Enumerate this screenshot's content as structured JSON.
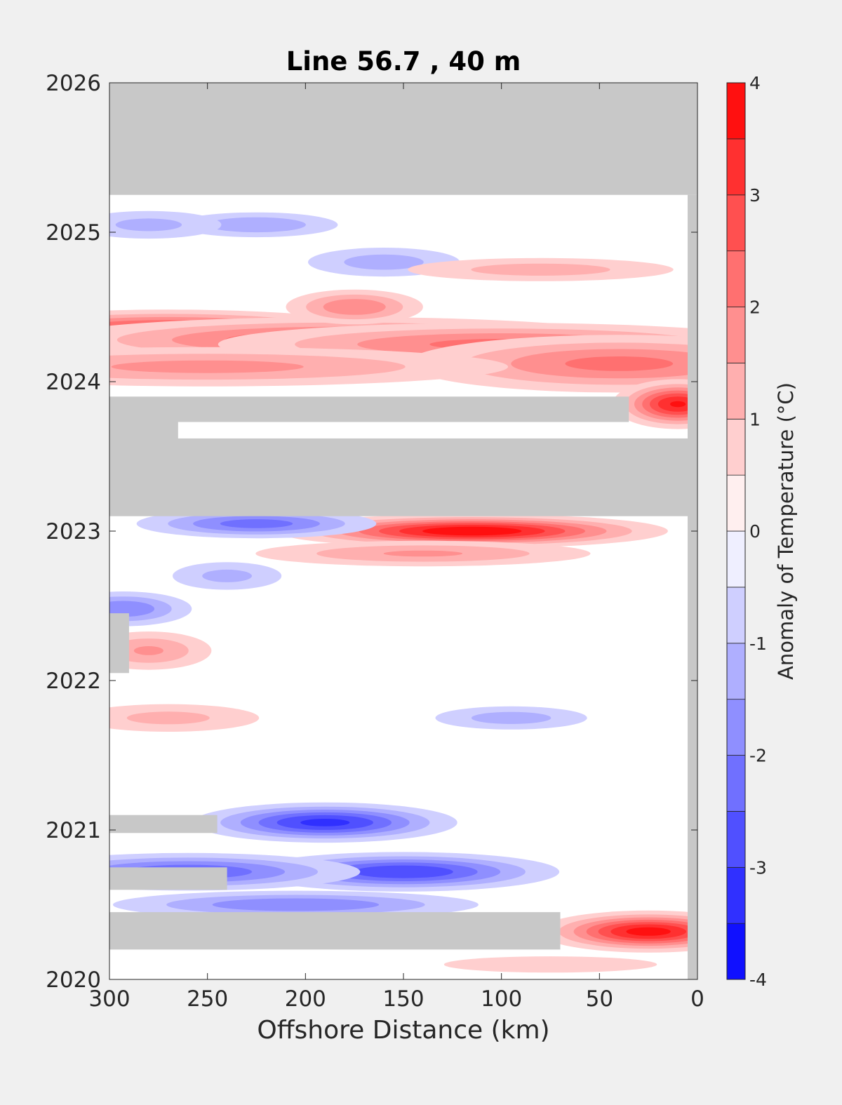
{
  "chart_data": {
    "type": "heatmap",
    "title": "Line 56.7 , 40 m",
    "xlabel": "Offshore Distance (km)",
    "ylabel": "",
    "xlim": [
      300,
      0
    ],
    "ylim": [
      2020,
      2026
    ],
    "x_reversed": true,
    "x_ticks": [
      300,
      250,
      200,
      150,
      100,
      50,
      0
    ],
    "y_ticks": [
      2020,
      2021,
      2022,
      2023,
      2024,
      2025,
      2026
    ],
    "colorbar": {
      "label": "Anomaly of Temperature (°C)",
      "range": [
        -4,
        4
      ],
      "ticks": [
        4,
        3,
        2,
        1,
        0,
        -1,
        -2,
        -3,
        -4
      ],
      "levels": [
        -4,
        -3.5,
        -3,
        -2.5,
        -2,
        -1.5,
        -1,
        -0.5,
        0,
        0.5,
        1,
        1.5,
        2,
        2.5,
        3,
        3.5,
        4
      ],
      "colormap": "blue-white-red",
      "min_color": "#0000ff",
      "mid_color": "#ffffff",
      "max_color": "#ff0000"
    },
    "no_data_color": "#c8c8c8",
    "no_data_bands": [
      {
        "x": [
          300,
          0
        ],
        "y": [
          2025.25,
          2026
        ]
      },
      {
        "x": [
          300,
          0
        ],
        "y": [
          2023.1,
          2023.62
        ]
      },
      {
        "x": [
          300,
          35
        ],
        "y": [
          2023.73,
          2023.9
        ]
      },
      {
        "x": [
          300,
          265
        ],
        "y": [
          2023.6,
          2023.73
        ]
      },
      {
        "x": [
          300,
          245
        ],
        "y": [
          2020.98,
          2021.1
        ]
      },
      {
        "x": [
          300,
          240
        ],
        "y": [
          2020.6,
          2020.75
        ]
      },
      {
        "x": [
          300,
          70
        ],
        "y": [
          2020.2,
          2020.45
        ]
      },
      {
        "x": [
          300,
          290
        ],
        "y": [
          2022.05,
          2022.45
        ]
      },
      {
        "x": [
          5,
          0
        ],
        "y": [
          2020,
          2025.25
        ]
      },
      {
        "x": [
          300,
          0
        ],
        "y": [
          2019.96,
          2020.0
        ]
      }
    ],
    "anomaly_features": [
      {
        "x": 270,
        "y": 2024.35,
        "value": 3.0,
        "spread_km": 40,
        "spread_yr": 0.05
      },
      {
        "x": 180,
        "y": 2024.28,
        "value": 2.6,
        "spread_km": 60,
        "spread_yr": 0.06
      },
      {
        "x": 100,
        "y": 2024.25,
        "value": 2.2,
        "spread_km": 60,
        "spread_yr": 0.06
      },
      {
        "x": 40,
        "y": 2024.12,
        "value": 2.2,
        "spread_km": 45,
        "spread_yr": 0.08
      },
      {
        "x": 250,
        "y": 2024.1,
        "value": 1.7,
        "spread_km": 70,
        "spread_yr": 0.06
      },
      {
        "x": 10,
        "y": 2023.85,
        "value": 3.6,
        "spread_km": 12,
        "spread_yr": 0.06
      },
      {
        "x": 175,
        "y": 2024.5,
        "value": 2.0,
        "spread_km": 15,
        "spread_yr": 0.05
      },
      {
        "x": 225,
        "y": 2025.05,
        "value": -1.5,
        "spread_km": 20,
        "spread_yr": 0.04
      },
      {
        "x": 280,
        "y": 2025.05,
        "value": -1.2,
        "spread_km": 20,
        "spread_yr": 0.05
      },
      {
        "x": 160,
        "y": 2024.8,
        "value": -1.3,
        "spread_km": 20,
        "spread_yr": 0.05
      },
      {
        "x": 80,
        "y": 2024.75,
        "value": 1.3,
        "spread_km": 35,
        "spread_yr": 0.04
      },
      {
        "x": 115,
        "y": 2023.0,
        "value": 4.0,
        "spread_km": 35,
        "spread_yr": 0.04
      },
      {
        "x": 225,
        "y": 2023.05,
        "value": -2.3,
        "spread_km": 25,
        "spread_yr": 0.04
      },
      {
        "x": 140,
        "y": 2022.85,
        "value": 1.6,
        "spread_km": 40,
        "spread_yr": 0.04
      },
      {
        "x": 293,
        "y": 2022.48,
        "value": -2.0,
        "spread_km": 15,
        "spread_yr": 0.05
      },
      {
        "x": 280,
        "y": 2022.2,
        "value": 1.6,
        "spread_km": 15,
        "spread_yr": 0.06
      },
      {
        "x": 240,
        "y": 2022.7,
        "value": -1.2,
        "spread_km": 15,
        "spread_yr": 0.05
      },
      {
        "x": 270,
        "y": 2021.75,
        "value": 1.2,
        "spread_km": 25,
        "spread_yr": 0.05
      },
      {
        "x": 95,
        "y": 2021.75,
        "value": -1.3,
        "spread_km": 20,
        "spread_yr": 0.04
      },
      {
        "x": 190,
        "y": 2021.05,
        "value": -3.2,
        "spread_km": 25,
        "spread_yr": 0.05
      },
      {
        "x": 150,
        "y": 2020.72,
        "value": -3.0,
        "spread_km": 30,
        "spread_yr": 0.05
      },
      {
        "x": 260,
        "y": 2020.72,
        "value": -2.5,
        "spread_km": 35,
        "spread_yr": 0.05
      },
      {
        "x": 205,
        "y": 2020.5,
        "value": -2.0,
        "spread_km": 40,
        "spread_yr": 0.04
      },
      {
        "x": 25,
        "y": 2020.32,
        "value": 3.8,
        "spread_km": 20,
        "spread_yr": 0.05
      },
      {
        "x": 75,
        "y": 2020.1,
        "value": 0.8,
        "spread_km": 40,
        "spread_yr": 0.04
      }
    ]
  }
}
